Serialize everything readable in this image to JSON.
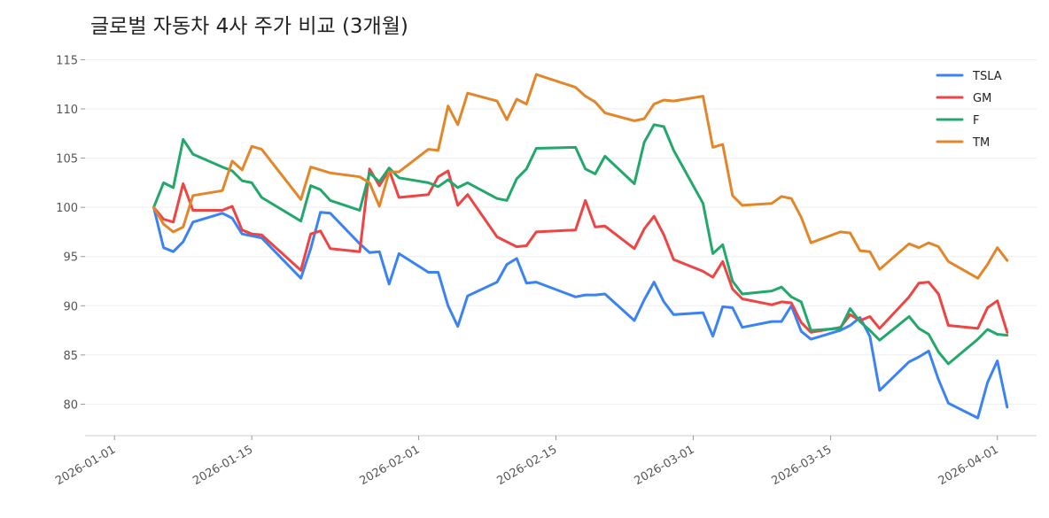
{
  "chart_data": {
    "type": "line",
    "title": "글로벌 자동차 4사 주가 비교 (3개월)",
    "xlabel": "",
    "ylabel": "",
    "ylim": [
      76.8,
      116.3
    ],
    "grid": "horizontal",
    "legend": "top-right",
    "y_ticks": [
      80,
      85,
      90,
      95,
      100,
      105,
      110,
      115
    ],
    "x_ticks": [
      "2026-01-01",
      "2026-01-15",
      "2026-02-01",
      "2026-02-15",
      "2026-03-01",
      "2026-03-15",
      "2026-04-01"
    ],
    "x": [
      "2026-01-05",
      "2026-01-06",
      "2026-01-07",
      "2026-01-08",
      "2026-01-09",
      "2026-01-12",
      "2026-01-13",
      "2026-01-14",
      "2026-01-15",
      "2026-01-16",
      "2026-01-20",
      "2026-01-21",
      "2026-01-22",
      "2026-01-23",
      "2026-01-26",
      "2026-01-27",
      "2026-01-28",
      "2026-01-29",
      "2026-01-30",
      "2026-02-02",
      "2026-02-03",
      "2026-02-04",
      "2026-02-05",
      "2026-02-06",
      "2026-02-09",
      "2026-02-10",
      "2026-02-11",
      "2026-02-12",
      "2026-02-13",
      "2026-02-17",
      "2026-02-18",
      "2026-02-19",
      "2026-02-20",
      "2026-02-23",
      "2026-02-24",
      "2026-02-25",
      "2026-02-26",
      "2026-02-27",
      "2026-03-02",
      "2026-03-03",
      "2026-03-04",
      "2026-03-05",
      "2026-03-06",
      "2026-03-09",
      "2026-03-10",
      "2026-03-11",
      "2026-03-12",
      "2026-03-13",
      "2026-03-16",
      "2026-03-17",
      "2026-03-18",
      "2026-03-19",
      "2026-03-20",
      "2026-03-23",
      "2026-03-24",
      "2026-03-25",
      "2026-03-26",
      "2026-03-27",
      "2026-03-30",
      "2026-03-31",
      "2026-04-01",
      "2026-04-02"
    ],
    "series": [
      {
        "name": "TSLA",
        "color": "#3b82f6",
        "values": [
          100.0,
          95.9,
          95.5,
          96.5,
          98.5,
          99.4,
          98.9,
          97.3,
          97.1,
          96.9,
          92.8,
          95.8,
          99.5,
          99.4,
          96.3,
          95.4,
          95.5,
          92.2,
          95.3,
          93.4,
          93.4,
          90.0,
          87.9,
          91.0,
          92.4,
          94.2,
          94.8,
          92.3,
          92.4,
          90.9,
          91.1,
          91.1,
          91.2,
          88.5,
          90.6,
          92.4,
          90.4,
          89.1,
          89.3,
          86.9,
          89.9,
          89.8,
          87.8,
          88.4,
          88.4,
          90.0,
          87.4,
          86.6,
          87.5,
          88.0,
          88.8,
          86.9,
          81.4,
          84.3,
          84.8,
          85.4,
          82.5,
          80.1,
          78.6,
          82.2,
          84.4,
          79.7
        ]
      },
      {
        "name": "GM",
        "color": "#ef4444",
        "values": [
          100.0,
          98.8,
          98.5,
          102.4,
          99.7,
          99.7,
          100.1,
          97.7,
          97.3,
          97.2,
          93.6,
          97.3,
          97.6,
          95.8,
          95.5,
          103.9,
          102.2,
          103.8,
          101.0,
          101.3,
          103.1,
          103.7,
          100.2,
          101.3,
          97.0,
          96.5,
          96.0,
          96.1,
          97.5,
          97.7,
          100.7,
          98.0,
          98.1,
          95.8,
          97.8,
          99.1,
          97.2,
          94.7,
          93.5,
          92.9,
          94.5,
          91.7,
          90.7,
          90.1,
          90.4,
          90.3,
          88.3,
          87.3,
          87.8,
          89.1,
          88.5,
          88.9,
          87.7,
          90.9,
          92.3,
          92.4,
          91.2,
          88.0,
          87.7,
          89.8,
          90.5,
          87.3
        ]
      },
      {
        "name": "F",
        "color": "#22a86b",
        "values": [
          100.0,
          102.5,
          102.0,
          106.9,
          105.4,
          104.1,
          103.7,
          102.7,
          102.5,
          101.0,
          98.6,
          102.2,
          101.8,
          100.7,
          99.7,
          103.5,
          102.6,
          104.0,
          103.0,
          102.5,
          102.1,
          102.8,
          102.0,
          102.5,
          100.9,
          100.7,
          102.9,
          103.9,
          106.0,
          106.1,
          103.9,
          103.4,
          105.2,
          102.4,
          106.6,
          108.4,
          108.2,
          105.8,
          100.4,
          95.3,
          96.2,
          92.5,
          91.2,
          91.5,
          91.9,
          90.9,
          90.4,
          87.5,
          87.7,
          89.7,
          88.4,
          87.5,
          86.5,
          88.9,
          87.7,
          87.1,
          85.3,
          84.1,
          86.6,
          87.6,
          87.1,
          87.0
        ]
      },
      {
        "name": "TM",
        "color": "#e3862a",
        "values": [
          100.0,
          98.3,
          97.5,
          98.0,
          101.2,
          101.7,
          104.7,
          103.8,
          106.2,
          105.9,
          100.8,
          104.1,
          103.8,
          103.5,
          103.1,
          102.5,
          100.1,
          103.6,
          103.6,
          105.9,
          105.8,
          110.3,
          108.4,
          111.6,
          110.8,
          108.9,
          111.0,
          110.5,
          113.5,
          112.2,
          111.3,
          110.7,
          109.6,
          108.8,
          109.0,
          110.5,
          110.9,
          110.8,
          111.3,
          106.1,
          106.4,
          101.2,
          100.2,
          100.4,
          101.1,
          100.9,
          99.0,
          96.4,
          97.5,
          97.4,
          95.6,
          95.5,
          93.7,
          96.3,
          95.9,
          96.4,
          96.0,
          94.5,
          92.8,
          94.2,
          95.9,
          94.6
        ]
      }
    ]
  }
}
